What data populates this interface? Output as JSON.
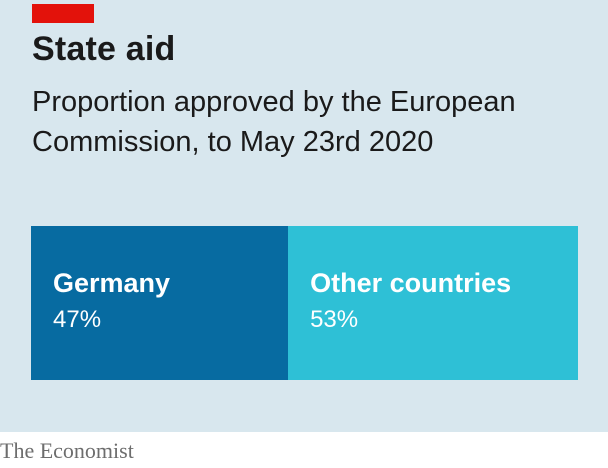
{
  "colors": {
    "accent": "#e3120b",
    "panel": "#d8e7ee",
    "germany": "#076ba1",
    "other": "#2ec0d6"
  },
  "header": {
    "title": "State aid",
    "subtitle": "Proportion approved by the European Commission, to May 23rd 2020"
  },
  "chart_data": {
    "type": "bar",
    "orientation": "stacked-horizontal",
    "categories": [
      "Germany",
      "Other countries"
    ],
    "values": [
      47,
      53
    ],
    "labels": [
      "47%",
      "53%"
    ],
    "unit": "%"
  },
  "footer": {
    "source": "The Economist"
  }
}
